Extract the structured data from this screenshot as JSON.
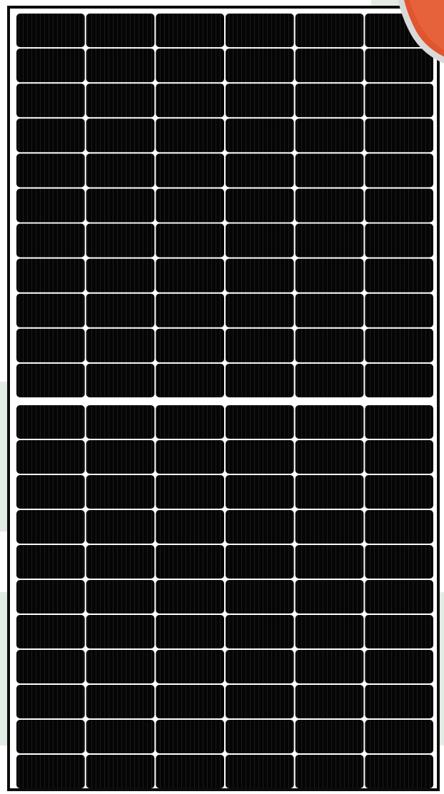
{
  "image": {
    "subject": "solar-panel",
    "colors": {
      "frame": "#0c0c0c",
      "cell": "#050505",
      "gap": "#ffffff",
      "background_tint": "#e3ece4",
      "badge": "#e0552f"
    },
    "panel": {
      "cell_columns": 6,
      "cell_rows_per_half": 11,
      "halves": 2,
      "total_cells": 132
    },
    "icons": [
      "red-badge-icon"
    ]
  }
}
